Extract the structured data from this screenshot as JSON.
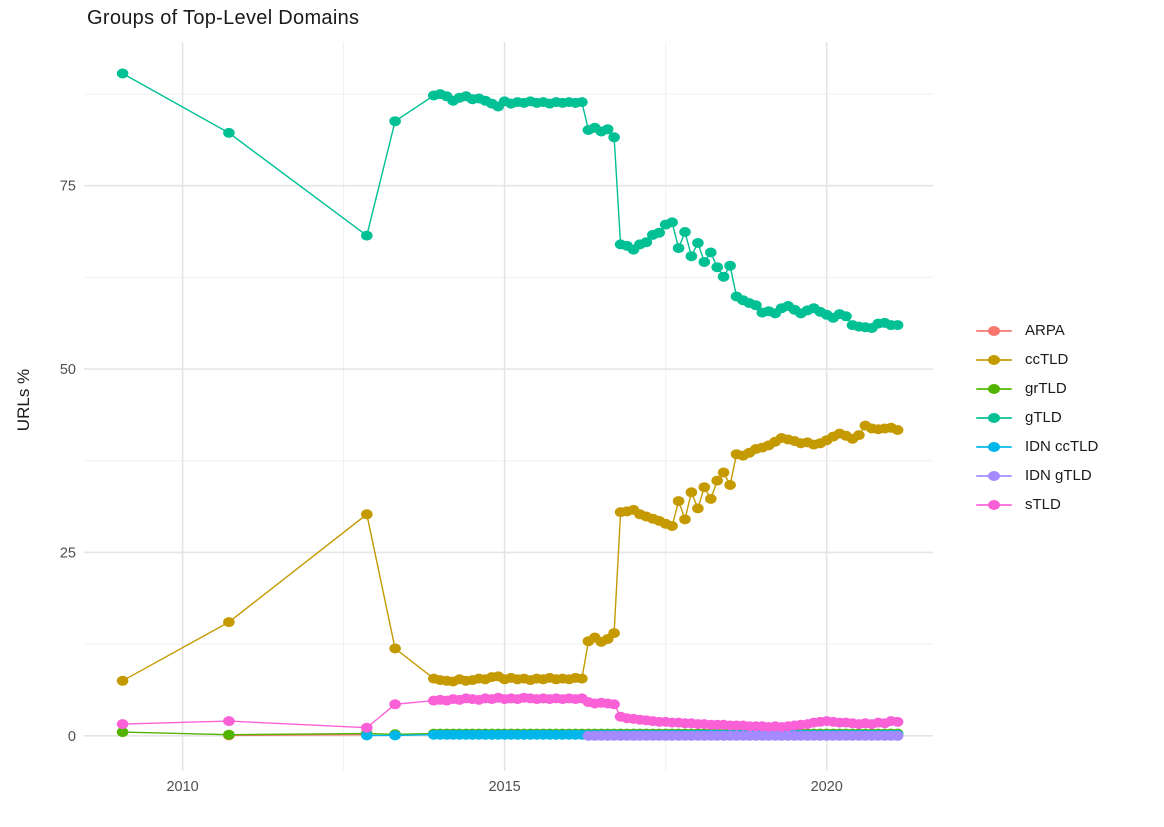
{
  "page_title": "Groups of Top-Level Domains",
  "colors": {
    "background": "#ffffff",
    "grid_major": "#e5e5e5",
    "grid_minor": "#f0f0f0",
    "tick_text": "#4f4f4f",
    "title_text": "#1a1a1a"
  },
  "chart_data": {
    "type": "line",
    "title": "Groups of Top-Level Domains",
    "subtitle": "",
    "xlabel": "",
    "ylabel": "URLs %",
    "legend_position": "right",
    "grid": true,
    "x_axis": {
      "tick_values": [
        2010,
        2015,
        2020
      ],
      "tick_labels": [
        "2010",
        "2015",
        "2020"
      ],
      "minor_ticks": [
        2012.5,
        2017.5
      ],
      "range": [
        2008.47,
        2021.65
      ]
    },
    "y_axis": {
      "tick_values": [
        0,
        25,
        50,
        75
      ],
      "tick_labels": [
        "0",
        "25",
        "50",
        "75"
      ],
      "minor_ticks": [
        12.5,
        37.5,
        62.5,
        87.5
      ],
      "range": [
        -4.8,
        94.6
      ]
    },
    "dense_x": {
      "start": 2013.9,
      "step": 0.1,
      "count": 73
    },
    "series": [
      {
        "name": "ARPA",
        "color": "#F8766D",
        "early": [
          [
            2010.72,
            0.05
          ],
          [
            2012.86,
            0.15
          ]
        ]
      },
      {
        "name": "ccTLD",
        "color": "#C49A00",
        "early": [
          [
            2009.07,
            7.5
          ],
          [
            2010.72,
            15.5
          ],
          [
            2012.86,
            30.2
          ],
          [
            2013.3,
            11.9
          ]
        ],
        "dense_y": [
          7.8,
          7.6,
          7.5,
          7.4,
          7.7,
          7.5,
          7.6,
          7.8,
          7.7,
          8.0,
          8.1,
          7.7,
          7.9,
          7.7,
          7.8,
          7.6,
          7.8,
          7.7,
          7.9,
          7.7,
          7.8,
          7.7,
          7.9,
          7.8,
          12.9,
          13.4,
          12.8,
          13.2,
          14.0,
          30.5,
          30.6,
          30.8,
          30.2,
          29.9,
          29.6,
          29.3,
          28.9,
          28.6,
          32.0,
          29.5,
          33.2,
          31.0,
          33.9,
          32.3,
          34.8,
          35.9,
          34.2,
          38.4,
          38.2,
          38.6,
          39.1,
          39.3,
          39.6,
          40.1,
          40.6,
          40.4,
          40.2,
          39.9,
          40.0,
          39.7,
          39.9,
          40.3,
          40.8,
          41.2,
          40.9,
          40.5,
          41.0,
          42.3,
          41.9,
          41.8,
          41.9,
          42.0,
          41.7
        ]
      },
      {
        "name": "grTLD",
        "color": "#53B400",
        "early": [
          [
            2009.07,
            0.5
          ],
          [
            2010.72,
            0.15
          ],
          [
            2012.86,
            0.3
          ],
          [
            2013.3,
            0.2
          ]
        ],
        "dense_fill": {
          "value": 0.3,
          "count": 73
        }
      },
      {
        "name": "gTLD",
        "color": "#00C094",
        "early": [
          [
            2009.07,
            90.3
          ],
          [
            2010.72,
            82.2
          ],
          [
            2012.86,
            68.2
          ],
          [
            2013.3,
            83.8
          ]
        ],
        "dense_y": [
          87.3,
          87.5,
          87.2,
          86.6,
          87.0,
          87.2,
          86.8,
          86.9,
          86.6,
          86.2,
          85.8,
          86.5,
          86.2,
          86.4,
          86.3,
          86.5,
          86.3,
          86.4,
          86.2,
          86.4,
          86.3,
          86.4,
          86.3,
          86.4,
          82.6,
          82.9,
          82.4,
          82.7,
          81.6,
          67.0,
          66.8,
          66.3,
          67.0,
          67.3,
          68.3,
          68.6,
          69.7,
          70.0,
          66.5,
          68.7,
          65.4,
          67.2,
          64.6,
          65.9,
          63.9,
          62.6,
          64.1,
          59.9,
          59.4,
          59.0,
          58.7,
          57.7,
          57.9,
          57.6,
          58.3,
          58.6,
          58.1,
          57.6,
          58.0,
          58.3,
          57.8,
          57.4,
          57.0,
          57.5,
          57.2,
          56.0,
          55.8,
          55.7,
          55.6,
          56.2,
          56.3,
          56.0,
          56.0
        ]
      },
      {
        "name": "IDN ccTLD",
        "color": "#00B6EB",
        "early": [
          [
            2012.86,
            0.05
          ],
          [
            2013.3,
            0.05
          ]
        ],
        "dense_fill": {
          "value": 0.15,
          "count": 73
        }
      },
      {
        "name": "IDN gTLD",
        "color": "#A58AFF",
        "dense_start_index": 24,
        "dense_fill": {
          "value": 0.0,
          "count": 49
        }
      },
      {
        "name": "sTLD",
        "color": "#FB61D7",
        "early": [
          [
            2009.07,
            1.6
          ],
          [
            2010.72,
            2.0
          ],
          [
            2012.86,
            1.1
          ],
          [
            2013.3,
            4.3
          ]
        ],
        "dense_y": [
          4.8,
          4.9,
          4.8,
          5.0,
          4.9,
          5.1,
          5.0,
          4.9,
          5.1,
          5.0,
          5.2,
          5.0,
          5.1,
          5.0,
          5.2,
          5.1,
          5.0,
          5.1,
          5.0,
          5.1,
          5.0,
          5.1,
          5.0,
          5.1,
          4.6,
          4.4,
          4.5,
          4.4,
          4.3,
          2.6,
          2.4,
          2.3,
          2.2,
          2.1,
          2.0,
          1.9,
          1.9,
          1.8,
          1.8,
          1.7,
          1.7,
          1.6,
          1.6,
          1.5,
          1.5,
          1.5,
          1.4,
          1.4,
          1.4,
          1.3,
          1.3,
          1.3,
          1.2,
          1.3,
          1.2,
          1.3,
          1.4,
          1.5,
          1.6,
          1.8,
          1.9,
          2.0,
          1.9,
          1.8,
          1.8,
          1.7,
          1.6,
          1.7,
          1.6,
          1.8,
          1.7,
          2.0,
          1.9
        ]
      }
    ]
  }
}
